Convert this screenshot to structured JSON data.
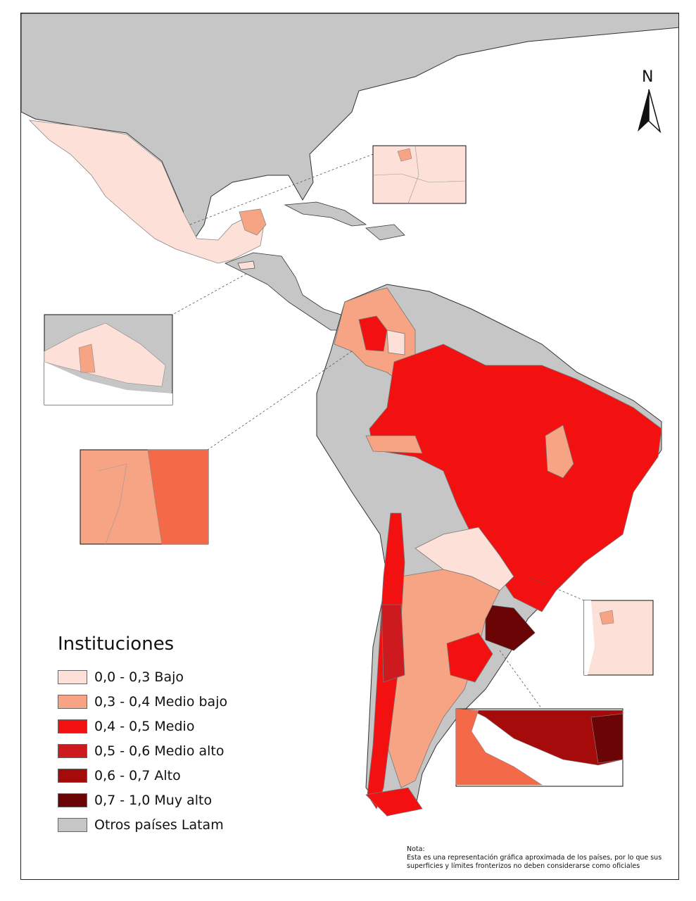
{
  "map": {
    "north_label": "N",
    "legend": {
      "title": "Instituciones",
      "items": [
        {
          "label": "0,0 - 0,3 Bajo",
          "color": "#fde0d7"
        },
        {
          "label": "0,3 - 0,4 Medio bajo",
          "color": "#f7a485"
        },
        {
          "label": "0,4 - 0,5 Medio",
          "color": "#f21010"
        },
        {
          "label": "0,5 - 0,6 Medio alto",
          "color": "#cc1a1f"
        },
        {
          "label": "0,6 - 0,7 Alto",
          "color": "#a50b0b"
        },
        {
          "label": "0,7 - 1,0 Muy alto",
          "color": "#6b0404"
        },
        {
          "label": "Otros países Latam",
          "color": "#c6c6c6"
        }
      ]
    },
    "note": {
      "heading": "Nota:",
      "line1": "Esta es una representación gráfica aproximada de los países, por lo que sus",
      "line2": "superficies y límites fronterizos no deben considerarse como oficiales"
    }
  }
}
